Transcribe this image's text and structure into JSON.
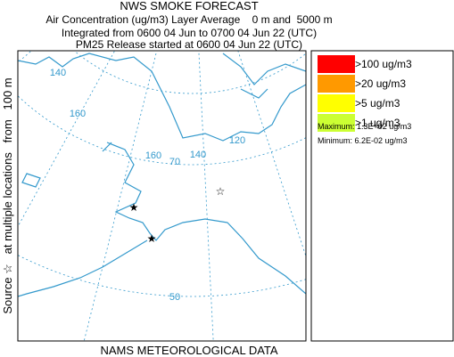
{
  "header": {
    "title": "NWS SMOKE FORECAST",
    "lines": [
      "Air Concentration (ug/m3) Layer Average    0 m and  5000 m",
      "Integrated from 0600 04 Jun to 0700 04 Jun 22 (UTC)",
      "PM25 Release started at 0600 04 Jun 22 (UTC)"
    ]
  },
  "side_label": "Source ☆   at multiple locations   from   100 m",
  "footer": "NAMS METEOROLOGICAL DATA",
  "legend": {
    "items": [
      {
        "label": ">100 ug/m3",
        "color": "#ff0000"
      },
      {
        "label": ">20 ug/m3",
        "color": "#ff9900"
      },
      {
        "label": ">5 ug/m3",
        "color": "#ffff00"
      },
      {
        "label": ">1 ug/m3",
        "color": "#ccff33"
      }
    ],
    "maximum": "Maximum: 1.3E+02 ug/m3",
    "minimum": "Minimum: 6.2E-02 ug/m3"
  },
  "map": {
    "grid_labels": [
      "140",
      "160",
      "160",
      "70",
      "140",
      "120",
      "50"
    ]
  }
}
